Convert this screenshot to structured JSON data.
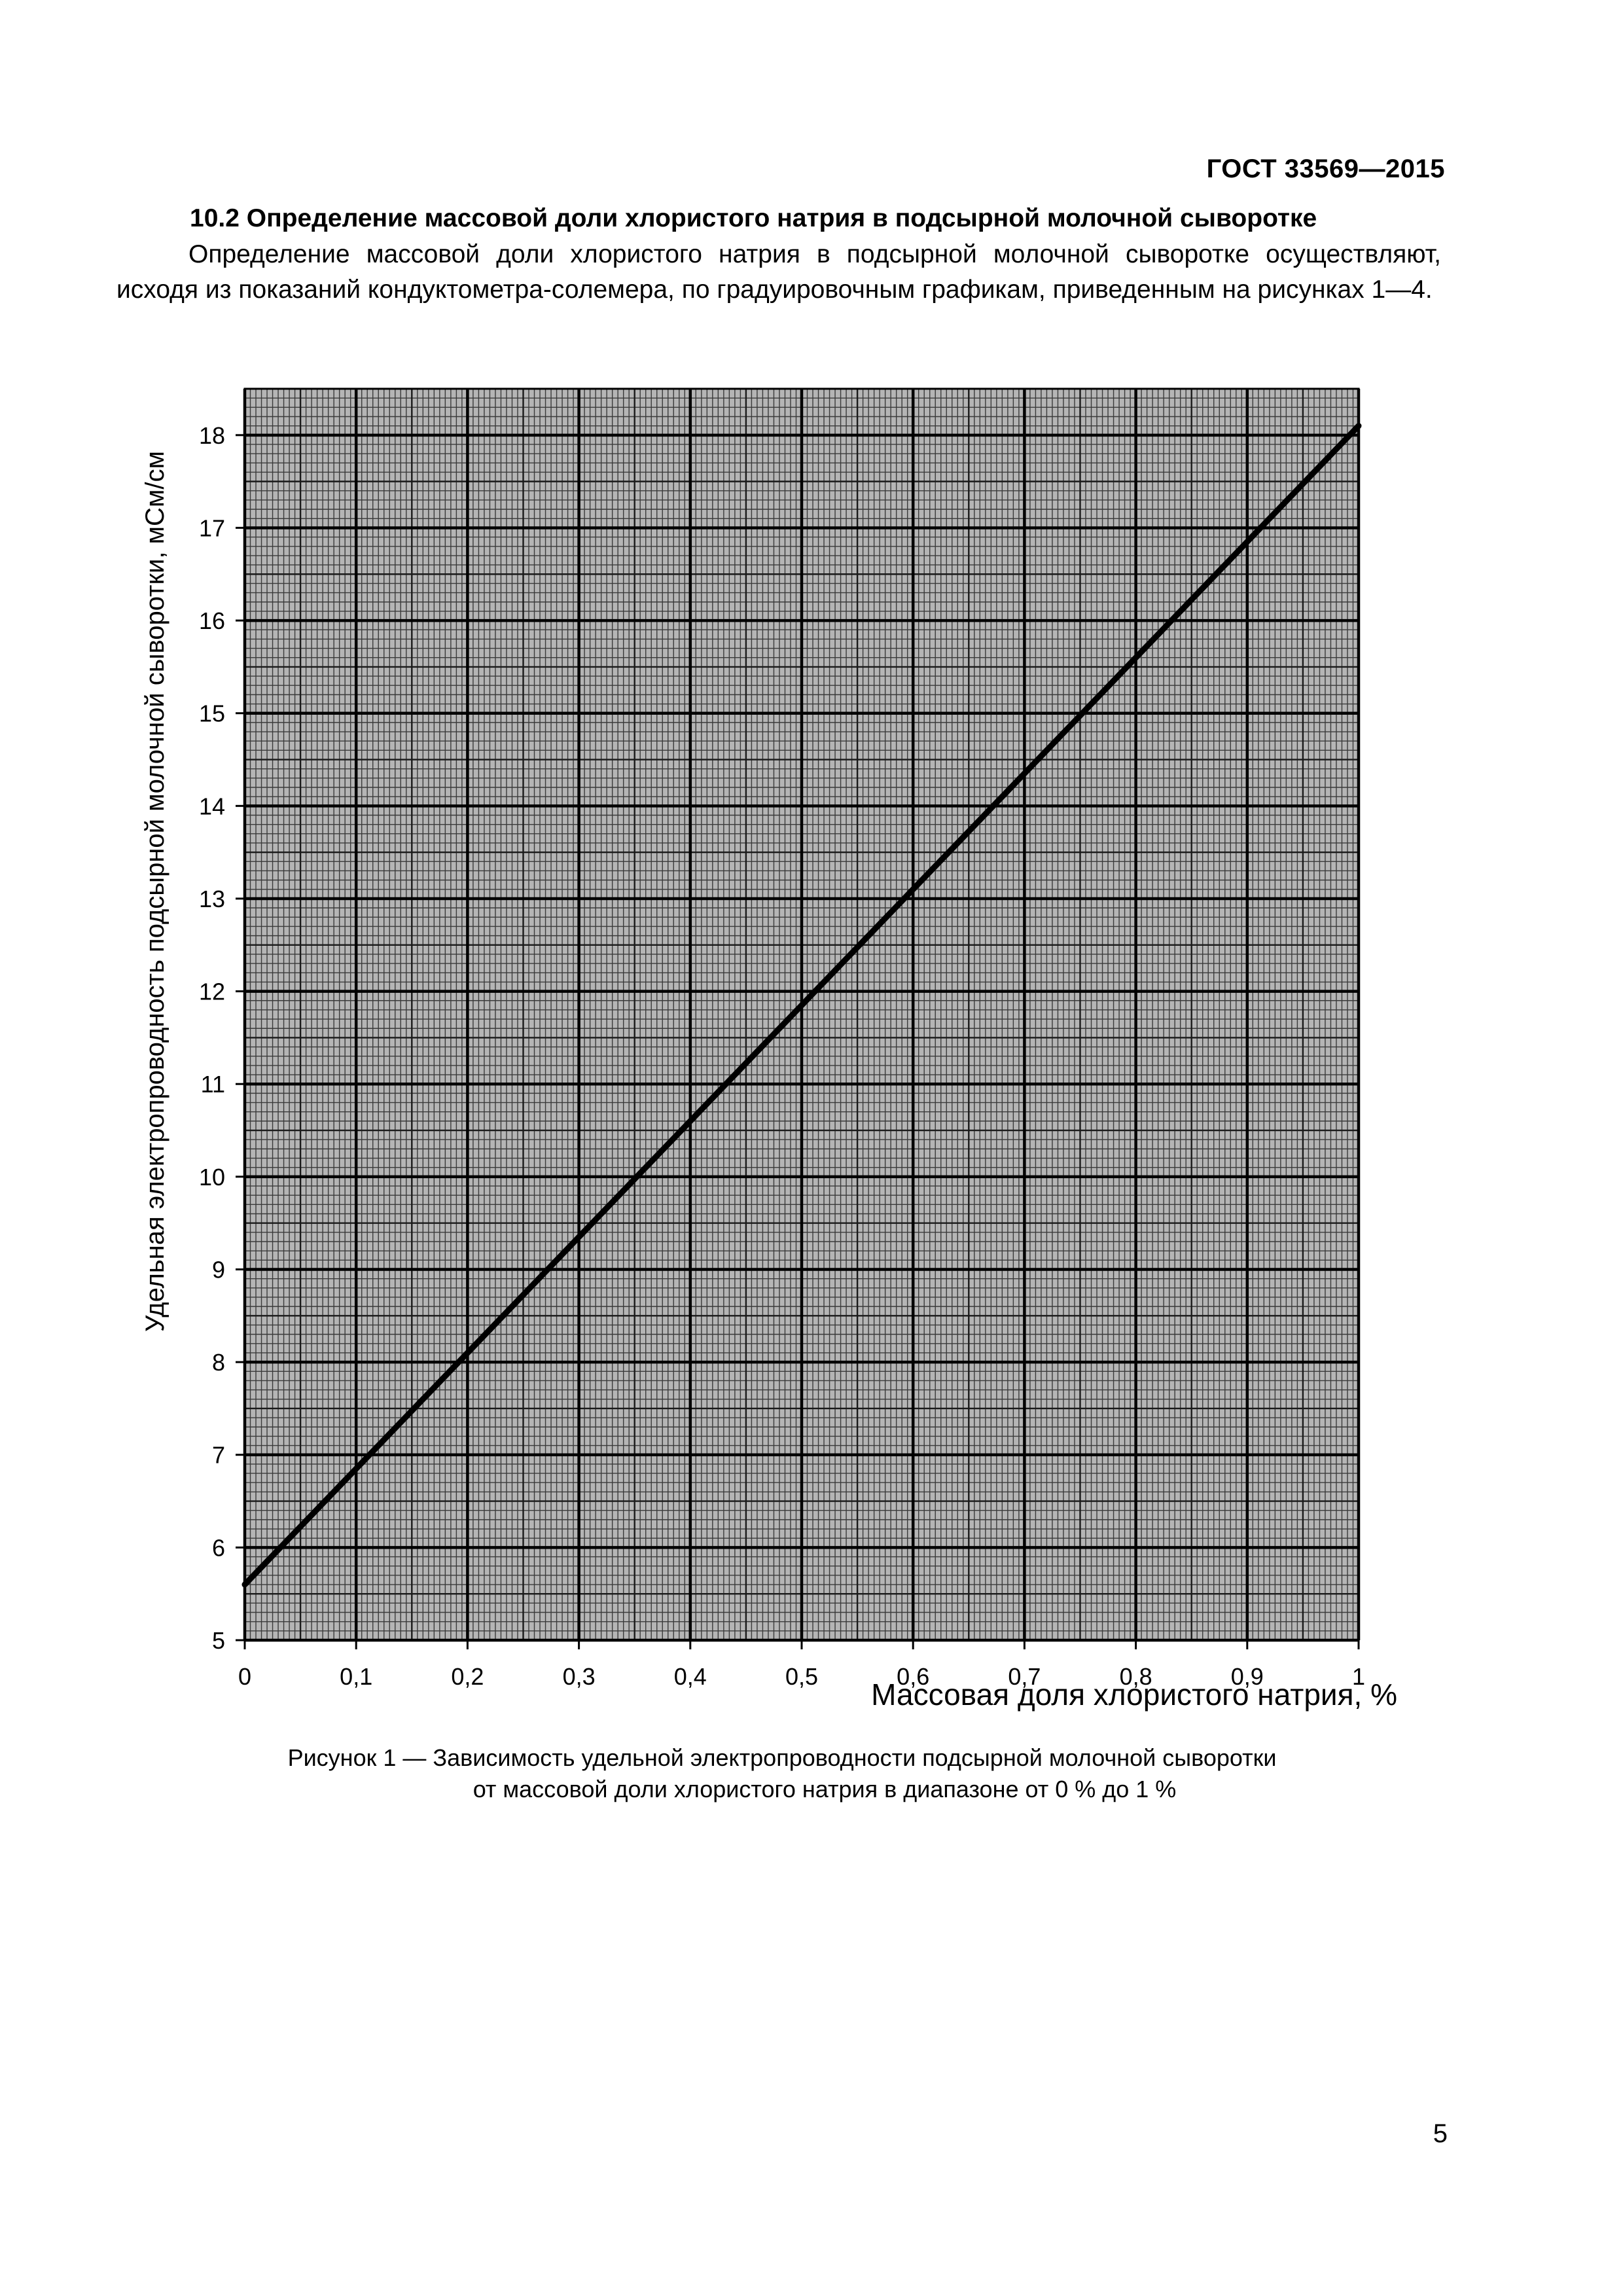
{
  "header": {
    "doc_code": "ГОСТ 33569—2015"
  },
  "section": {
    "title": "10.2 Определение массовой доли хлористого натрия в подсырной молочной сыворотке",
    "paragraph": "Определение массовой доли хлористого натрия в подсырной молочной сыворотке осуществляют, исходя из показаний кондуктометра-солемера, по градуировочным графикам, приведенным на рисунках 1—4."
  },
  "chart_data": {
    "type": "line",
    "xlabel": "Массовая доля хлористого натрия, %",
    "ylabel": "Удельная электропроводность подсырной молочной сыворотки, мСм/см",
    "xlim": [
      0,
      1
    ],
    "ylim": [
      5,
      18.5
    ],
    "x_ticks": [
      "0",
      "0,1",
      "0,2",
      "0,3",
      "0,4",
      "0,5",
      "0,6",
      "0,7",
      "0,8",
      "0,9",
      "1"
    ],
    "y_ticks": [
      "5",
      "6",
      "7",
      "8",
      "9",
      "10",
      "11",
      "12",
      "13",
      "14",
      "15",
      "16",
      "17",
      "18"
    ],
    "grid": true,
    "background_color": "#b5b5b5",
    "line_color": "#000000",
    "series": [
      {
        "x": [
          0,
          0.1,
          0.2,
          0.3,
          0.4,
          0.5,
          0.6,
          0.7,
          0.8,
          0.9,
          1
        ],
        "y": [
          5.6,
          6.85,
          8.1,
          9.35,
          10.6,
          11.85,
          13.1,
          14.35,
          15.6,
          16.85,
          18.1
        ]
      }
    ]
  },
  "figure": {
    "caption_line1": "Рисунок 1 — Зависимость удельной электропроводности подсырной молочной сыворотки",
    "caption_line2": "от массовой доли хлористого натрия в диапазоне от 0 % до 1 %"
  },
  "page": {
    "number": "5"
  }
}
